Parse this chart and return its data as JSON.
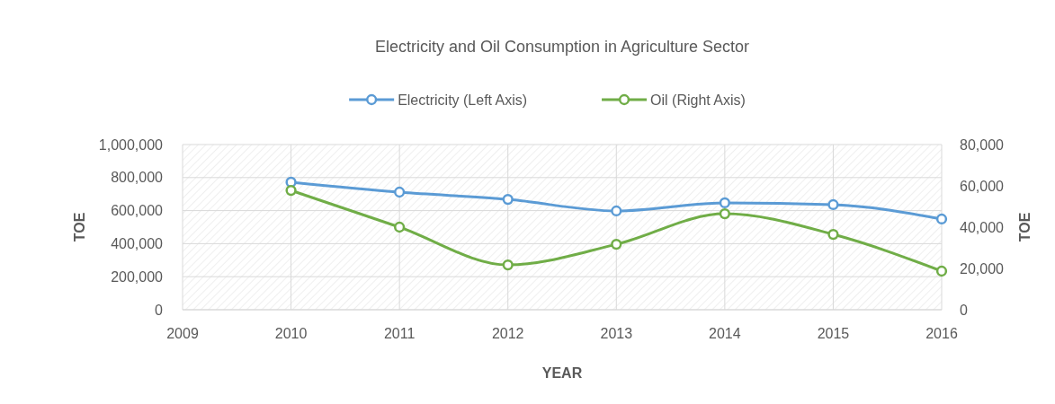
{
  "chart_data": {
    "type": "line",
    "title": "Electricity and Oil Consumption in Agriculture Sector",
    "xlabel": "YEAR",
    "ylabel": "TOE",
    "y2label": "TOE",
    "x": [
      2010,
      2011,
      2012,
      2013,
      2014,
      2015,
      2016
    ],
    "series": [
      {
        "name": "Electricity (Left Axis)",
        "color": "#5b9bd5",
        "values": [
          772000,
          712000,
          668000,
          598000,
          647000,
          636000,
          549000
        ]
      },
      {
        "name": "Oil (Right Axis)",
        "color": "#70ad47",
        "axis": "y2",
        "values": [
          57800,
          40000,
          21700,
          31700,
          46500,
          36500,
          18700
        ]
      }
    ],
    "xlim": [
      2009,
      2016
    ],
    "xticks": [
      2009,
      2010,
      2011,
      2012,
      2013,
      2014,
      2015,
      2016
    ],
    "ylim": [
      0,
      1000000
    ],
    "yticks": [
      {
        "value": 0,
        "label": "0"
      },
      {
        "value": 200000,
        "label": "200,000"
      },
      {
        "value": 400000,
        "label": "400,000"
      },
      {
        "value": 600000,
        "label": "600,000"
      },
      {
        "value": 800000,
        "label": "800,000"
      },
      {
        "value": 1000000,
        "label": "1,000,000"
      }
    ],
    "y2lim": [
      0,
      80000
    ],
    "y2ticks": [
      {
        "value": 0,
        "label": "0"
      },
      {
        "value": 20000,
        "label": "20,000"
      },
      {
        "value": 40000,
        "label": "40,000"
      },
      {
        "value": 60000,
        "label": "60,000"
      },
      {
        "value": 80000,
        "label": "80,000"
      }
    ],
    "grid": true,
    "legend": "top",
    "marker": "circle",
    "line_style": "solid"
  }
}
